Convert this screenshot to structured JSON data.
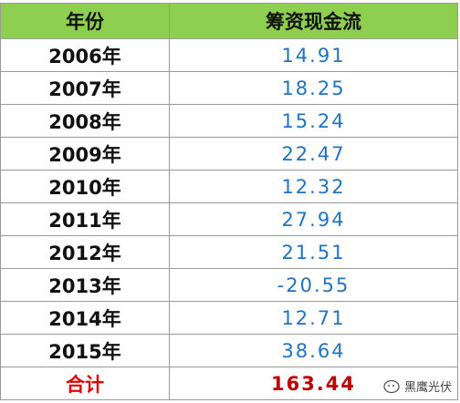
{
  "header": [
    "年份",
    "筹资现金流"
  ],
  "rows": [
    [
      "2006年",
      "14.91"
    ],
    [
      "2007年",
      "18.25"
    ],
    [
      "2008年",
      "15.24"
    ],
    [
      "2009年",
      "22.47"
    ],
    [
      "2010年",
      "12.32"
    ],
    [
      "2011年",
      "27.94"
    ],
    [
      "2012年",
      "21.51"
    ],
    [
      "2013年",
      "-20.55"
    ],
    [
      "2014年",
      "12.71"
    ],
    [
      "2015年",
      "38.64"
    ]
  ],
  "total": [
    "合计",
    "163.44"
  ],
  "watermark": "黑鹰光伏"
}
